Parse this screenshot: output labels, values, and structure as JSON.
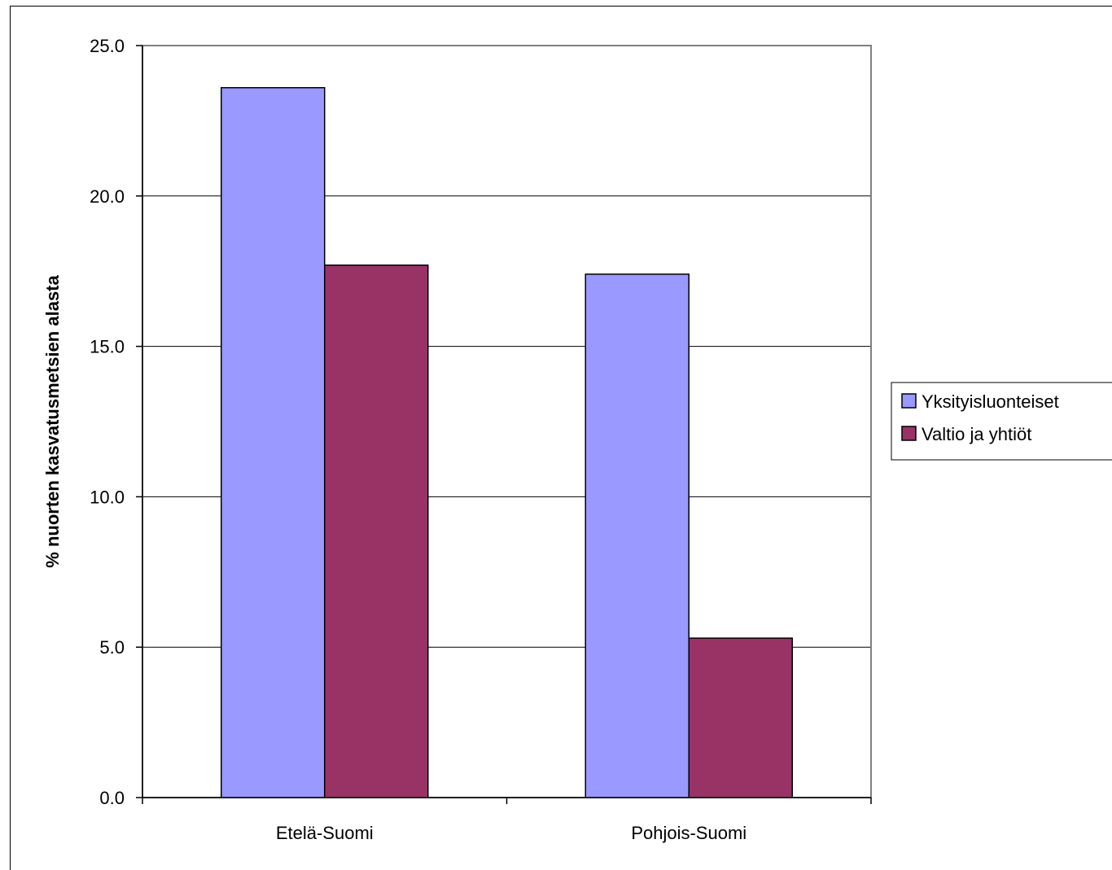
{
  "chart_data": {
    "type": "bar",
    "title": "",
    "xlabel": "",
    "ylabel": "% nuorten kasvatusmetsien alasta",
    "categories": [
      "Etelä-Suomi",
      "Pohjois-Suomi"
    ],
    "series": [
      {
        "name": "Yksityisluonteiset",
        "values": [
          23.6,
          17.4
        ],
        "color": "#9999ff"
      },
      {
        "name": "Valtio ja yhtiöt",
        "values": [
          17.7,
          5.3
        ],
        "color": "#993366"
      }
    ],
    "ylim": [
      0,
      25
    ],
    "yticks": [
      "0.0",
      "5.0",
      "10.0",
      "15.0",
      "20.0",
      "25.0"
    ],
    "grid": true,
    "legend_position": "right",
    "plot_border_color": "#808080",
    "gridline_color": "#000000"
  }
}
